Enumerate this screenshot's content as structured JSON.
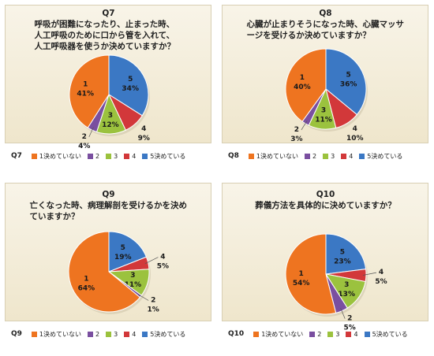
{
  "colors": {
    "1": "#ee7420",
    "2": "#7a4fa0",
    "3": "#9bc23e",
    "4": "#d2383a",
    "5": "#3b78c4"
  },
  "legend_categories": [
    {
      "key": "1",
      "label": "1決めていない"
    },
    {
      "key": "2",
      "label": "2"
    },
    {
      "key": "3",
      "label": "3"
    },
    {
      "key": "4",
      "label": "4"
    },
    {
      "key": "5",
      "label": "5決めている"
    }
  ],
  "chart_data": [
    {
      "type": "pie",
      "id": "q7",
      "title_num": "Q7",
      "title_text": "呼吸が困難になったり、止まった時、人工呼吸のために口から管を入れて、人工呼吸器を使うか決めていますか？",
      "legend_label": "Q7",
      "slices": [
        {
          "key": "5",
          "label": "5",
          "value": 34,
          "pct": "34%"
        },
        {
          "key": "4",
          "label": "4",
          "value": 9,
          "pct": "9%"
        },
        {
          "key": "3",
          "label": "3",
          "value": 12,
          "pct": "12%"
        },
        {
          "key": "2",
          "label": "2",
          "value": 4,
          "pct": "4%"
        },
        {
          "key": "1",
          "label": "1",
          "value": 41,
          "pct": "41%"
        }
      ]
    },
    {
      "type": "pie",
      "id": "q8",
      "title_num": "Q8",
      "title_text": "心臓が止まりそうになった時、心臓マッサージを受けるか決めていますか？",
      "legend_label": "Q8",
      "slices": [
        {
          "key": "5",
          "label": "5",
          "value": 36,
          "pct": "36%"
        },
        {
          "key": "4",
          "label": "4",
          "value": 10,
          "pct": "10%"
        },
        {
          "key": "3",
          "label": "3",
          "value": 11,
          "pct": "11%"
        },
        {
          "key": "2",
          "label": "2",
          "value": 3,
          "pct": "3%"
        },
        {
          "key": "1",
          "label": "1",
          "value": 40,
          "pct": "40%"
        }
      ]
    },
    {
      "type": "pie",
      "id": "q9",
      "title_num": "Q9",
      "title_text": "亡くなった時、病理解剖を受けるかを決めていますか？",
      "legend_label": "Q9",
      "slices": [
        {
          "key": "5",
          "label": "5",
          "value": 19,
          "pct": "19%"
        },
        {
          "key": "4",
          "label": "4",
          "value": 5,
          "pct": "5%"
        },
        {
          "key": "3",
          "label": "3",
          "value": 11,
          "pct": "11%"
        },
        {
          "key": "2",
          "label": "2",
          "value": 1,
          "pct": "1%"
        },
        {
          "key": "1",
          "label": "1",
          "value": 64,
          "pct": "64%"
        }
      ]
    },
    {
      "type": "pie",
      "id": "q10",
      "title_num": "Q10",
      "title_text": "葬儀方法を具体的に決めていますか？",
      "legend_label": "Q10",
      "slices": [
        {
          "key": "5",
          "label": "5",
          "value": 23,
          "pct": "23%"
        },
        {
          "key": "4",
          "label": "4",
          "value": 5,
          "pct": "5%"
        },
        {
          "key": "3",
          "label": "3",
          "value": 13,
          "pct": "13%"
        },
        {
          "key": "2",
          "label": "2",
          "value": 5,
          "pct": "5%"
        },
        {
          "key": "1",
          "label": "1",
          "value": 54,
          "pct": "54%"
        }
      ]
    }
  ]
}
